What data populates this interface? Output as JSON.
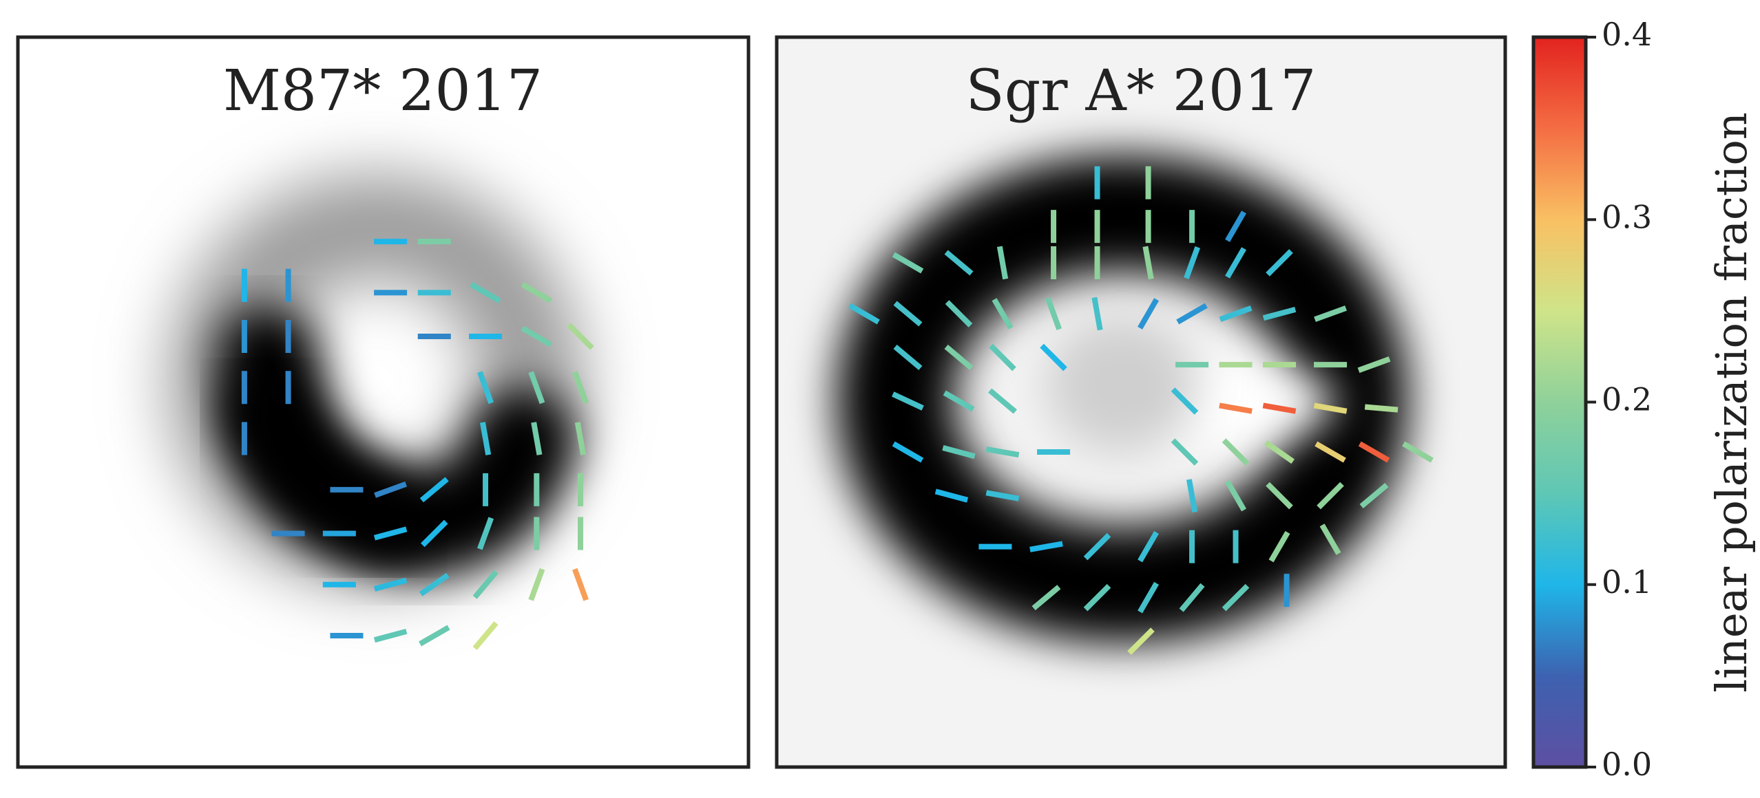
{
  "chart_data": [
    {
      "type": "vector-field",
      "title": "M87* 2017",
      "vectors": {
        "x": [
          0.31,
          0.37,
          0.31,
          0.37,
          0.31,
          0.37,
          0.31,
          0.51,
          0.57,
          0.51,
          0.57,
          0.64,
          0.71,
          0.57,
          0.64,
          0.71,
          0.77,
          0.64,
          0.71,
          0.77,
          0.64,
          0.71,
          0.77,
          0.45,
          0.51,
          0.57,
          0.64,
          0.71,
          0.77,
          0.37,
          0.44,
          0.51,
          0.57,
          0.64,
          0.71,
          0.77,
          0.44,
          0.51,
          0.57,
          0.64,
          0.71,
          0.77,
          0.45,
          0.51,
          0.57,
          0.64
        ],
        "y": [
          0.34,
          0.34,
          0.41,
          0.41,
          0.48,
          0.48,
          0.55,
          0.28,
          0.28,
          0.35,
          0.35,
          0.35,
          0.35,
          0.41,
          0.41,
          0.41,
          0.41,
          0.48,
          0.48,
          0.48,
          0.55,
          0.55,
          0.55,
          0.62,
          0.62,
          0.62,
          0.62,
          0.62,
          0.62,
          0.68,
          0.68,
          0.68,
          0.68,
          0.68,
          0.68,
          0.68,
          0.75,
          0.75,
          0.75,
          0.75,
          0.75,
          0.75,
          0.82,
          0.82,
          0.82,
          0.82
        ],
        "angle": [
          90,
          90,
          90,
          90,
          90,
          90,
          90,
          0,
          0,
          0,
          0,
          30,
          30,
          0,
          0,
          30,
          45,
          70,
          70,
          70,
          80,
          80,
          80,
          0,
          -20,
          -40,
          90,
          90,
          90,
          0,
          0,
          -15,
          -45,
          -70,
          90,
          90,
          0,
          -15,
          -35,
          -50,
          -70,
          70,
          0,
          -15,
          -30,
          -50
        ],
        "values": [
          0.1,
          0.08,
          0.08,
          0.07,
          0.07,
          0.07,
          0.07,
          0.1,
          0.18,
          0.08,
          0.12,
          0.15,
          0.2,
          0.07,
          0.1,
          0.17,
          0.22,
          0.12,
          0.17,
          0.2,
          0.12,
          0.17,
          0.2,
          0.07,
          0.07,
          0.1,
          0.13,
          0.17,
          0.2,
          0.07,
          0.09,
          0.1,
          0.1,
          0.14,
          0.18,
          0.2,
          0.1,
          0.11,
          0.12,
          0.16,
          0.22,
          0.32,
          0.08,
          0.15,
          0.16,
          0.25
        ]
      }
    },
    {
      "type": "vector-field",
      "title": "Sgr A* 2017",
      "vectors": {
        "x": [
          0.44,
          0.51,
          0.38,
          0.44,
          0.51,
          0.57,
          0.63,
          0.18,
          0.25,
          0.31,
          0.38,
          0.44,
          0.51,
          0.57,
          0.63,
          0.69,
          0.12,
          0.18,
          0.25,
          0.31,
          0.38,
          0.44,
          0.51,
          0.57,
          0.63,
          0.69,
          0.76,
          0.18,
          0.25,
          0.31,
          0.38,
          0.57,
          0.63,
          0.69,
          0.76,
          0.82,
          0.18,
          0.25,
          0.31,
          0.56,
          0.63,
          0.69,
          0.76,
          0.83,
          0.18,
          0.25,
          0.31,
          0.38,
          0.56,
          0.63,
          0.69,
          0.76,
          0.82,
          0.88,
          0.24,
          0.31,
          0.57,
          0.63,
          0.69,
          0.76,
          0.82,
          0.3,
          0.37,
          0.44,
          0.51,
          0.57,
          0.63,
          0.69,
          0.76,
          0.37,
          0.44,
          0.51,
          0.57,
          0.63,
          0.7,
          0.5
        ],
        "y": [
          0.2,
          0.2,
          0.26,
          0.26,
          0.26,
          0.26,
          0.26,
          0.31,
          0.31,
          0.31,
          0.31,
          0.31,
          0.31,
          0.31,
          0.31,
          0.31,
          0.38,
          0.38,
          0.38,
          0.38,
          0.38,
          0.38,
          0.38,
          0.38,
          0.38,
          0.38,
          0.38,
          0.44,
          0.44,
          0.44,
          0.44,
          0.45,
          0.45,
          0.45,
          0.45,
          0.45,
          0.5,
          0.5,
          0.5,
          0.5,
          0.51,
          0.51,
          0.51,
          0.51,
          0.57,
          0.57,
          0.57,
          0.57,
          0.57,
          0.57,
          0.57,
          0.57,
          0.57,
          0.57,
          0.63,
          0.63,
          0.63,
          0.63,
          0.63,
          0.63,
          0.63,
          0.7,
          0.7,
          0.7,
          0.7,
          0.7,
          0.7,
          0.7,
          0.69,
          0.77,
          0.77,
          0.77,
          0.77,
          0.77,
          0.76,
          0.83
        ],
        "angle": [
          90,
          90,
          90,
          90,
          90,
          90,
          -60,
          30,
          40,
          80,
          90,
          90,
          80,
          -70,
          -60,
          -45,
          30,
          40,
          45,
          60,
          70,
          80,
          -60,
          -30,
          -20,
          -15,
          -20,
          40,
          40,
          45,
          45,
          0,
          0,
          0,
          0,
          -20,
          25,
          30,
          40,
          45,
          10,
          10,
          10,
          5,
          30,
          15,
          10,
          0,
          45,
          45,
          35,
          30,
          30,
          30,
          15,
          10,
          80,
          60,
          45,
          -45,
          -40,
          0,
          -10,
          -45,
          -60,
          90,
          90,
          -60,
          60,
          -40,
          -45,
          -60,
          -50,
          -45,
          90,
          -45
        ],
        "values": [
          0.12,
          0.2,
          0.2,
          0.2,
          0.2,
          0.17,
          0.08,
          0.17,
          0.13,
          0.17,
          0.2,
          0.2,
          0.2,
          0.12,
          0.12,
          0.12,
          0.12,
          0.13,
          0.15,
          0.17,
          0.17,
          0.13,
          0.08,
          0.08,
          0.12,
          0.13,
          0.18,
          0.13,
          0.18,
          0.15,
          0.1,
          0.17,
          0.22,
          0.22,
          0.2,
          0.2,
          0.13,
          0.15,
          0.15,
          0.12,
          0.34,
          0.36,
          0.27,
          0.22,
          0.1,
          0.15,
          0.15,
          0.12,
          0.15,
          0.2,
          0.22,
          0.28,
          0.36,
          0.2,
          0.1,
          0.12,
          0.12,
          0.18,
          0.2,
          0.2,
          0.18,
          0.1,
          0.1,
          0.12,
          0.12,
          0.13,
          0.13,
          0.2,
          0.2,
          0.18,
          0.15,
          0.13,
          0.15,
          0.15,
          0.08,
          0.25
        ]
      }
    }
  ],
  "colorbar": {
    "label": "linear polarization fraction",
    "lim": [
      0,
      0.4
    ],
    "ticks": [
      {
        "value": 0,
        "label": "0.0"
      },
      0.1,
      0.2,
      0.3,
      0.4
    ],
    "colors": [
      "#5e4fa2",
      "#3d62b0",
      "#1fb6e8",
      "#5fc7b5",
      "#8fd19a",
      "#cfe489",
      "#f9c063",
      "#f46d43",
      "#e2231f"
    ]
  }
}
